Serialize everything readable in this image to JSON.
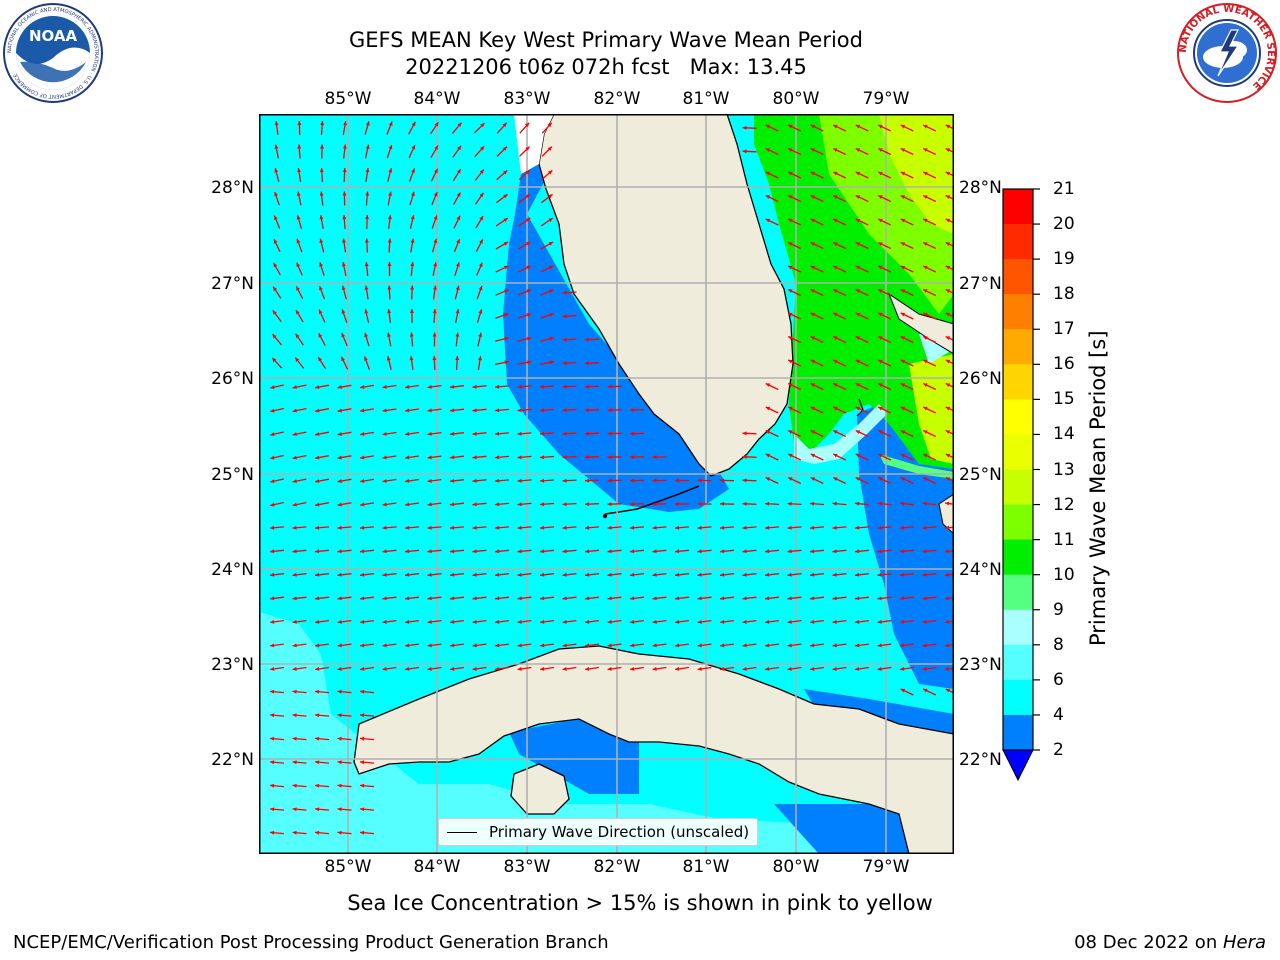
{
  "header": {
    "line1": "GEFS MEAN Key West Primary Wave Mean Period",
    "line2": "20221206 t06z 072h fcst   Max: 13.45"
  },
  "logos": {
    "noaa_text": "NOAA",
    "noaa_ring": "NATIONAL OCEANIC AND ATMOSPHERIC ADMINISTRATION · U.S. DEPARTMENT OF COMMERCE",
    "nws_ring": "NATIONAL WEATHER SERVICE"
  },
  "map": {
    "lon_labels": [
      "85°W",
      "84°W",
      "83°W",
      "82°W",
      "81°W",
      "80°W",
      "79°W"
    ],
    "lat_labels": [
      "28°N",
      "27°N",
      "26°N",
      "25°N",
      "24°N",
      "23°N",
      "22°N"
    ],
    "legend_label": "Primary Wave Direction (unscaled)",
    "arrow_color": "#ff0000",
    "land_color": "#efecdc",
    "grid_color": "#b0b0b0"
  },
  "colorbar": {
    "title": "Primary Wave Mean Period [s]",
    "ticks": [
      "21",
      "20",
      "19",
      "18",
      "17",
      "16",
      "15",
      "14",
      "13",
      "12",
      "11",
      "10",
      "9",
      "8",
      "6",
      "4",
      "2"
    ],
    "bands": [
      "#ff0000",
      "#ff2a00",
      "#ff5500",
      "#ff8000",
      "#ffaa00",
      "#ffd500",
      "#ffff00",
      "#eaff00",
      "#c8ff00",
      "#7dff00",
      "#00ee00",
      "#55ff80",
      "#aaffff",
      "#55ffff",
      "#00ffff",
      "#0080ff"
    ],
    "under_color": "#0000ff"
  },
  "notes": {
    "sea_ice": "Sea Ice Concentration > 15% is shown in pink to yellow"
  },
  "footer": {
    "left": "NCEP/EMC/Verification Post Processing Product Generation Branch",
    "right_prefix": "08 Dec 2022 on ",
    "right_host": "Hera"
  }
}
